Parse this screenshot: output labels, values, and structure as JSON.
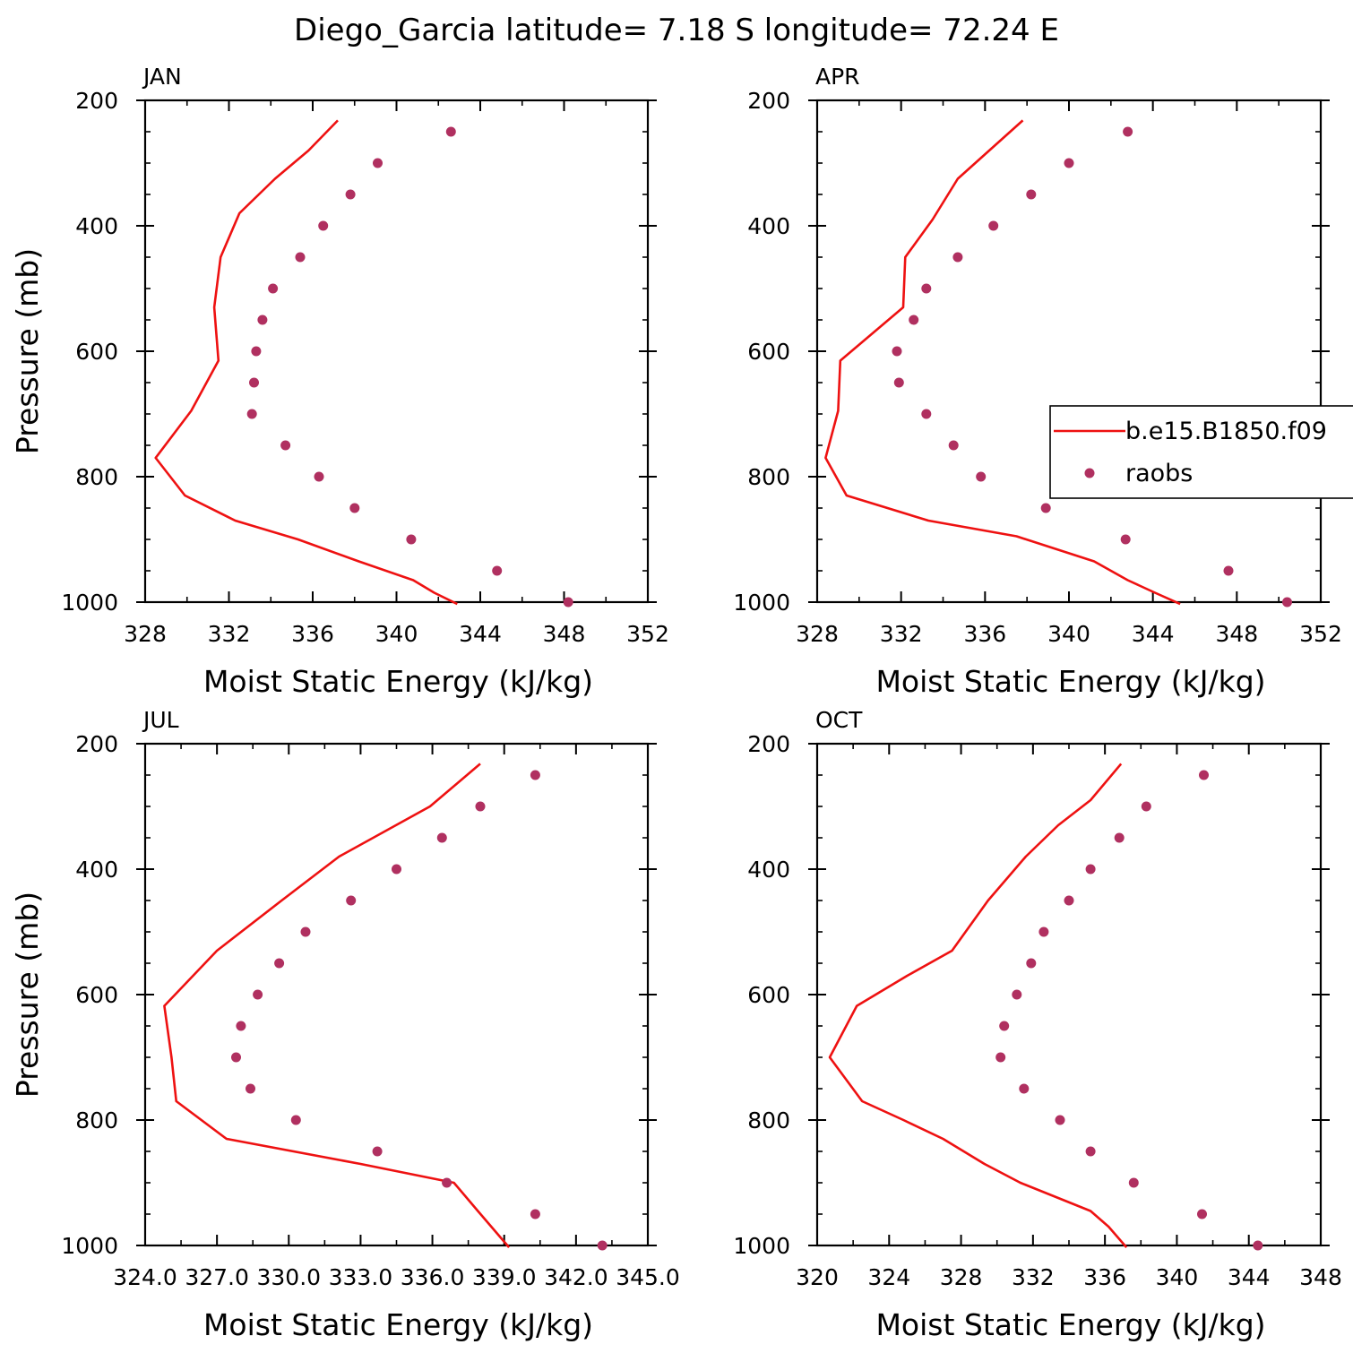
{
  "title": "Diego_Garcia  latitude= 7.18 S longitude= 72.24 E",
  "colors": {
    "model_line": "#ee1111",
    "obs_marker": "#b03060"
  },
  "legend": {
    "model_label": "b.e15.B1850.f09",
    "obs_label": "raobs"
  },
  "chart_data": [
    {
      "type": "line",
      "panel_label": "JAN",
      "xlabel": "Moist Static Energy (kJ/kg)",
      "ylabel": "Pressure (mb)",
      "xlim": [
        328,
        352
      ],
      "ylim": [
        200,
        1000
      ],
      "y_inverted": true,
      "xticks": [
        "328",
        "332",
        "336",
        "340",
        "344",
        "348",
        "352"
      ],
      "yticks": [
        "200",
        "400",
        "600",
        "800",
        "1000"
      ],
      "series": [
        {
          "name": "b.e15.B1850.f09",
          "kind": "line",
          "x": [
            337.2,
            335.8,
            334.2,
            332.5,
            331.6,
            331.3,
            331.5,
            330.2,
            328.5,
            329.9,
            332.3,
            335.3,
            338.2,
            340.8,
            341.8,
            342.9
          ],
          "y": [
            232,
            280,
            325,
            380,
            450,
            530,
            615,
            695,
            770,
            830,
            870,
            900,
            935,
            965,
            985,
            1003
          ]
        },
        {
          "name": "raobs",
          "kind": "scatter",
          "x": [
            342.6,
            339.1,
            337.8,
            336.5,
            335.4,
            334.1,
            333.6,
            333.3,
            333.2,
            333.1,
            334.7,
            336.3,
            338.0,
            340.7,
            344.8,
            348.2
          ],
          "y": [
            250,
            300,
            350,
            400,
            450,
            500,
            550,
            600,
            650,
            700,
            750,
            800,
            850,
            900,
            950,
            1000
          ]
        }
      ]
    },
    {
      "type": "line",
      "panel_label": "APR",
      "xlabel": "Moist Static Energy (kJ/kg)",
      "ylabel": "",
      "xlim": [
        328,
        352
      ],
      "ylim": [
        200,
        1000
      ],
      "y_inverted": true,
      "show_legend": true,
      "xticks": [
        "328",
        "332",
        "336",
        "340",
        "344",
        "348",
        "352"
      ],
      "yticks": [
        "200",
        "400",
        "600",
        "800",
        "1000"
      ],
      "series": [
        {
          "name": "b.e15.B1850.f09",
          "kind": "line",
          "x": [
            337.8,
            336.2,
            334.7,
            333.5,
            332.2,
            332.1,
            329.1,
            329.0,
            328.4,
            329.4,
            333.3,
            337.5,
            341.2,
            342.8,
            344.1,
            345.3
          ],
          "y": [
            232,
            280,
            325,
            390,
            450,
            530,
            615,
            695,
            770,
            830,
            870,
            895,
            935,
            965,
            985,
            1003
          ]
        },
        {
          "name": "raobs",
          "kind": "scatter",
          "x": [
            342.8,
            340.0,
            338.2,
            336.4,
            334.7,
            333.2,
            332.6,
            331.8,
            331.9,
            333.2,
            334.5,
            335.8,
            338.9,
            342.7,
            347.6,
            350.4
          ],
          "y": [
            250,
            300,
            350,
            400,
            450,
            500,
            550,
            600,
            650,
            700,
            750,
            800,
            850,
            900,
            950,
            1000
          ]
        }
      ]
    },
    {
      "type": "line",
      "panel_label": "JUL",
      "xlabel": "Moist Static Energy (kJ/kg)",
      "ylabel": "Pressure (mb)",
      "xlim": [
        324.0,
        345.0
      ],
      "ylim": [
        200,
        1000
      ],
      "y_inverted": true,
      "xticks": [
        "324.0",
        "327.0",
        "330.0",
        "333.0",
        "336.0",
        "339.0",
        "342.0",
        "345.0"
      ],
      "yticks": [
        "200",
        "400",
        "600",
        "800",
        "1000"
      ],
      "series": [
        {
          "name": "b.e15.B1850.f09",
          "kind": "line",
          "x": [
            338.0,
            335.9,
            332.1,
            329.7,
            327.0,
            324.8,
            325.1,
            325.3,
            327.4,
            333.0,
            336.9,
            337.9,
            339.2
          ],
          "y": [
            232,
            300,
            380,
            450,
            530,
            618,
            700,
            770,
            830,
            870,
            900,
            945,
            1003
          ]
        },
        {
          "name": "raobs",
          "kind": "scatter",
          "x": [
            340.3,
            338.0,
            336.4,
            334.5,
            332.6,
            330.7,
            329.6,
            328.7,
            328.0,
            327.8,
            328.4,
            330.3,
            333.7,
            336.6,
            340.3,
            343.1
          ],
          "y": [
            250,
            300,
            350,
            400,
            450,
            500,
            550,
            600,
            650,
            700,
            750,
            800,
            850,
            900,
            950,
            1000
          ]
        }
      ]
    },
    {
      "type": "line",
      "panel_label": "OCT",
      "xlabel": "Moist Static Energy (kJ/kg)",
      "ylabel": "",
      "xlim": [
        320,
        348
      ],
      "ylim": [
        200,
        1000
      ],
      "y_inverted": true,
      "xticks": [
        "320",
        "324",
        "328",
        "332",
        "336",
        "340",
        "344",
        "348"
      ],
      "yticks": [
        "200",
        "400",
        "600",
        "800",
        "1000"
      ],
      "series": [
        {
          "name": "b.e15.B1850.f09",
          "kind": "line",
          "x": [
            336.9,
            335.2,
            333.4,
            331.6,
            329.5,
            327.5,
            325.0,
            322.2,
            320.7,
            322.5,
            324.8,
            327.0,
            329.3,
            331.3,
            335.2,
            336.2,
            337.2
          ],
          "y": [
            232,
            290,
            330,
            380,
            450,
            530,
            570,
            618,
            700,
            770,
            800,
            830,
            870,
            900,
            945,
            970,
            1003
          ]
        },
        {
          "name": "raobs",
          "kind": "scatter",
          "x": [
            341.5,
            338.3,
            336.8,
            335.2,
            334.0,
            332.6,
            331.9,
            331.1,
            330.4,
            330.2,
            331.5,
            333.5,
            335.2,
            337.6,
            341.4,
            344.5
          ],
          "y": [
            250,
            300,
            350,
            400,
            450,
            500,
            550,
            600,
            650,
            700,
            750,
            800,
            850,
            900,
            950,
            1000
          ]
        }
      ]
    }
  ]
}
